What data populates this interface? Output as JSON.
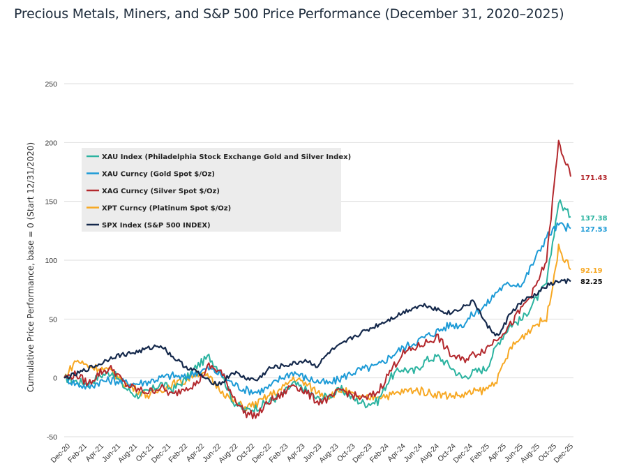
{
  "title": "Precious Metals, Miners, and S&P 500 Price Performance (December 31, 2020–2025)",
  "chart_data": {
    "type": "line",
    "ylabel": "Cumulative Price Performance, base = 0 (Start 12/31/2020)",
    "ylim": [
      -50,
      250
    ],
    "yticks": [
      -50,
      0,
      50,
      100,
      150,
      200,
      250
    ],
    "x_tick_labels": [
      "Dec-20",
      "Feb-21",
      "Apr-21",
      "Jun-21",
      "Aug-21",
      "Oct-21",
      "Dec-21",
      "Feb-22",
      "Apr-22",
      "Jun-22",
      "Aug-22",
      "Oct-22",
      "Dec-22",
      "Feb-23",
      "Apr-23",
      "Jun-23",
      "Aug-23",
      "Oct-23",
      "Dec-23",
      "Feb-24",
      "Apr-24",
      "Jun-24",
      "Aug-24",
      "Oct-24",
      "Dec-24",
      "Feb-25",
      "Apr-25",
      "Jun-25",
      "Aug-25",
      "Oct-25",
      "Dec-25"
    ],
    "grid": "horizontal",
    "legend_position": "top-left",
    "series": [
      {
        "name": "XAU Index (Philadelphia Stock Exchange Gold and Silver Index)",
        "color": "#2bb3a0",
        "end_label": "137.38",
        "values": [
          0,
          -3,
          -5,
          2,
          5,
          -8,
          -15,
          -12,
          -5,
          -10,
          -2,
          10,
          18,
          5,
          -20,
          -28,
          -25,
          -20,
          -15,
          -5,
          -10,
          -18,
          -15,
          -10,
          -18,
          -22,
          -20,
          0,
          8,
          5,
          15,
          18,
          10,
          0,
          5,
          8,
          30,
          45,
          50,
          65,
          80,
          150,
          137
        ]
      },
      {
        "name": "XAU Curncy (Gold Spot  $/Oz)",
        "color": "#1c9ad6",
        "end_label": "127.53",
        "values": [
          0,
          -5,
          -8,
          -3,
          -2,
          -4,
          -5,
          -3,
          0,
          2,
          0,
          5,
          8,
          3,
          -5,
          -10,
          -12,
          -8,
          0,
          5,
          0,
          -3,
          -5,
          0,
          5,
          8,
          10,
          18,
          25,
          30,
          35,
          40,
          45,
          45,
          55,
          62,
          75,
          80,
          80,
          100,
          120,
          130,
          127
        ]
      },
      {
        "name": "XAG Curncy (Silver Spot  $/Oz)",
        "color": "#b3282d",
        "end_label": "171.43",
        "values": [
          0,
          3,
          -5,
          5,
          8,
          -5,
          -10,
          -12,
          -8,
          -15,
          -8,
          -5,
          10,
          5,
          -15,
          -30,
          -32,
          -20,
          -15,
          -5,
          -12,
          -20,
          -18,
          -10,
          -15,
          -18,
          -12,
          5,
          20,
          25,
          30,
          35,
          20,
          15,
          20,
          25,
          35,
          45,
          60,
          75,
          100,
          200,
          171
        ]
      },
      {
        "name": "XPT Curncy (Platinum Spot  $/Oz)",
        "color": "#f7a823",
        "end_label": "92.19",
        "values": [
          0,
          15,
          10,
          8,
          5,
          -5,
          -10,
          -15,
          -10,
          -5,
          -3,
          5,
          0,
          -10,
          -20,
          -25,
          -22,
          -15,
          -10,
          0,
          -5,
          -12,
          -15,
          -10,
          -15,
          -18,
          -15,
          -15,
          -12,
          -10,
          -12,
          -14,
          -15,
          -15,
          -12,
          -10,
          0,
          25,
          35,
          45,
          50,
          110,
          92
        ]
      },
      {
        "name": "SPX Index (S&P 500 INDEX)",
        "color": "#14284b",
        "end_label": "82.25",
        "values": [
          0,
          3,
          8,
          12,
          18,
          20,
          22,
          25,
          28,
          18,
          10,
          5,
          -3,
          -5,
          5,
          0,
          -2,
          8,
          10,
          12,
          15,
          10,
          22,
          28,
          35,
          40,
          45,
          50,
          55,
          60,
          62,
          58,
          55,
          60,
          65,
          45,
          35,
          55,
          65,
          70,
          78,
          82,
          82
        ]
      }
    ]
  }
}
